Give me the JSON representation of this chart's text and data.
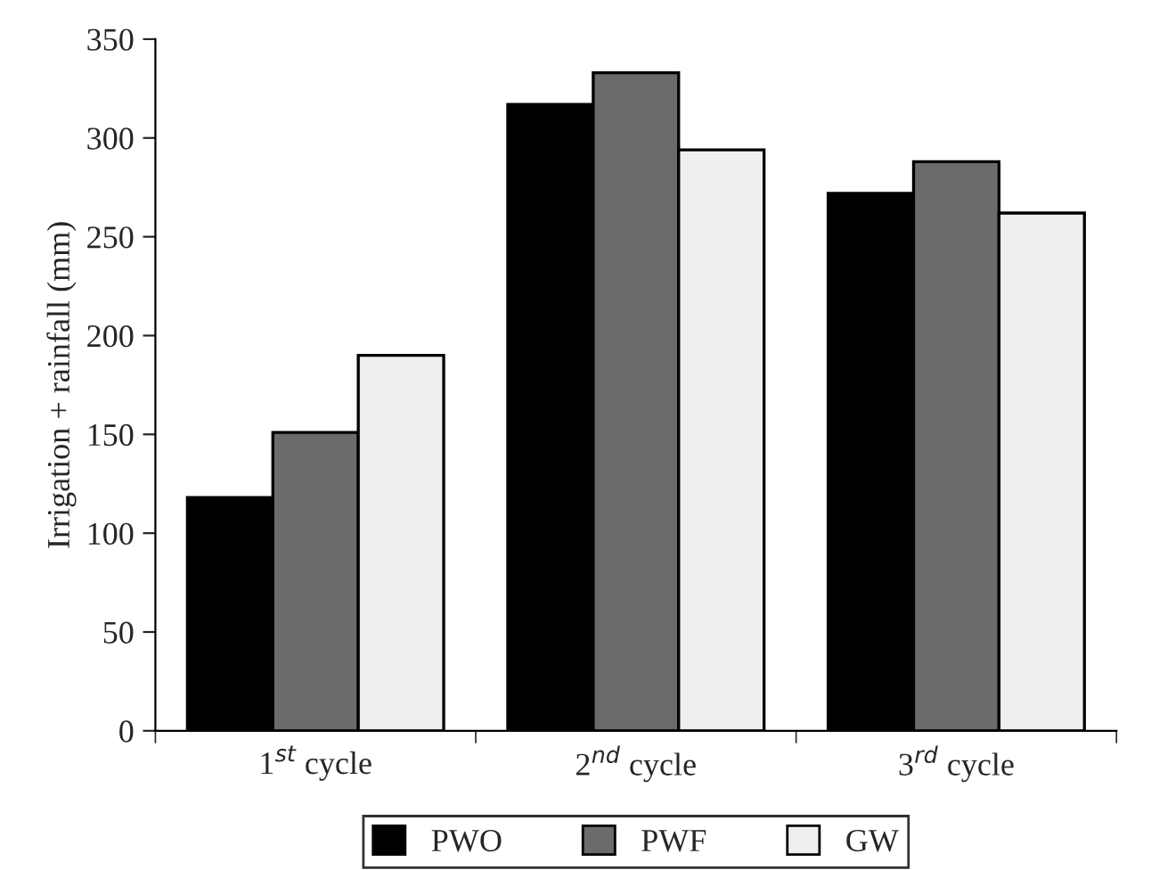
{
  "chart_data": {
    "type": "bar",
    "ylabel": "Irrigation + rainfall (mm)",
    "categories": [
      "1$^{st}$ cycle",
      "2$^{nd}$ cycle",
      "3$^{rd}$ cycle"
    ],
    "series": [
      {
        "name": "PWO",
        "color": "#000000",
        "values": [
          118,
          317,
          272
        ]
      },
      {
        "name": "PWF",
        "color": "#6b6b6b",
        "values": [
          151,
          333,
          288
        ]
      },
      {
        "name": "GW",
        "color": "#efefef",
        "values": [
          190,
          294,
          262
        ]
      }
    ],
    "ylim": [
      0,
      350
    ],
    "yticks": [
      0,
      50,
      100,
      150,
      200,
      250,
      300,
      350
    ],
    "grid": false,
    "legend": "bottom"
  }
}
